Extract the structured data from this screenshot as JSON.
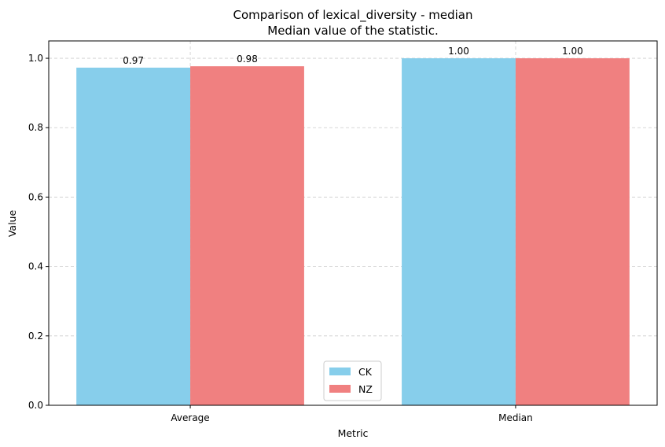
{
  "chart_data": {
    "type": "bar",
    "title": "Comparison of lexical_diversity - median",
    "subtitle": "Median value of the statistic.",
    "xlabel": "Metric",
    "ylabel": "Value",
    "categories": [
      "Average",
      "Median"
    ],
    "series": [
      {
        "name": "CK",
        "values": [
          0.973,
          1.0
        ],
        "labels": [
          "0.97",
          "1.00"
        ],
        "color": "#87CEEB"
      },
      {
        "name": "NZ",
        "values": [
          0.977,
          1.0
        ],
        "labels": [
          "0.98",
          "1.00"
        ],
        "color": "#F08080"
      }
    ],
    "ylim": [
      0,
      1.05
    ],
    "yticks": [
      0.0,
      0.2,
      0.4,
      0.6,
      0.8,
      1.0
    ],
    "ytick_labels": [
      "0.0",
      "0.2",
      "0.4",
      "0.6",
      "0.8",
      "1.0"
    ],
    "grid": true,
    "legend_position": "lower-center"
  }
}
